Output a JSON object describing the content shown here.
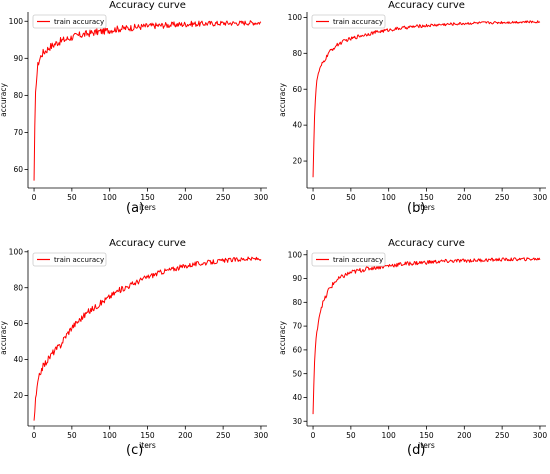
{
  "chart_data": [
    {
      "type": "line",
      "caption": "(a)",
      "title": "Accuracy curve",
      "xlabel": "iters",
      "ylabel": "accuracy",
      "xlim": [
        -8,
        308
      ],
      "ylim": [
        55,
        102.5
      ],
      "xticks": [
        0,
        50,
        100,
        150,
        200,
        250,
        300
      ],
      "yticks": [
        60,
        70,
        80,
        90,
        100
      ],
      "legend": "upper left",
      "grid": false,
      "series": [
        {
          "name": "train accuracy",
          "color": "#ff0000",
          "x": [
            0,
            1,
            2,
            3,
            4,
            5,
            6,
            8,
            10,
            12,
            15,
            18,
            20,
            25,
            30,
            35,
            40,
            45,
            50,
            60,
            70,
            80,
            90,
            100,
            110,
            120,
            130,
            140,
            150,
            160,
            170,
            180,
            190,
            200,
            210,
            220,
            230,
            240,
            250,
            260,
            270,
            280,
            290,
            297,
            300
          ],
          "y": [
            57,
            71,
            80,
            84,
            86,
            88,
            89,
            90,
            91,
            91.5,
            92,
            92.5,
            93,
            93.5,
            94.2,
            94.6,
            95,
            95.3,
            95.7,
            96.2,
            96.6,
            97,
            97.3,
            97.6,
            97.9,
            98.1,
            98.3,
            98.5,
            98.7,
            98.8,
            98.9,
            99,
            99.1,
            99.2,
            99.3,
            99.3,
            99.4,
            99.4,
            99.5,
            99.5,
            99.5,
            99.6,
            99.6,
            99.6,
            99.7
          ]
        }
      ]
    },
    {
      "type": "line",
      "caption": "(b)",
      "title": "Accuracy curve",
      "xlabel": "iters",
      "ylabel": "accuracy",
      "xlim": [
        -8,
        308
      ],
      "ylim": [
        5,
        103
      ],
      "xticks": [
        0,
        50,
        100,
        150,
        200,
        250,
        300
      ],
      "yticks": [
        20,
        40,
        60,
        80,
        100
      ],
      "legend": "upper left",
      "grid": false,
      "series": [
        {
          "name": "train accuracy",
          "color": "#ff0000",
          "x": [
            0,
            1,
            2,
            3,
            4,
            5,
            6,
            8,
            10,
            12,
            15,
            18,
            20,
            25,
            30,
            35,
            40,
            45,
            50,
            60,
            70,
            80,
            90,
            100,
            110,
            120,
            130,
            140,
            150,
            160,
            170,
            180,
            190,
            200,
            210,
            220,
            230,
            240,
            250,
            260,
            270,
            280,
            290,
            300
          ],
          "y": [
            11,
            30,
            45,
            54,
            60,
            64,
            67,
            70,
            72,
            74,
            76,
            78,
            80,
            82,
            84,
            85.5,
            86.5,
            87.5,
            88,
            89.5,
            90.5,
            91.5,
            92.3,
            93,
            93.6,
            94.2,
            94.7,
            95.1,
            95.4,
            95.7,
            96,
            96.2,
            96.4,
            96.6,
            96.8,
            96.9,
            97,
            97.1,
            97.2,
            97.3,
            97.4,
            97.5,
            97.5,
            97.6
          ]
        }
      ]
    },
    {
      "type": "line",
      "caption": "(c)",
      "title": "Accuracy curve",
      "xlabel": "iters",
      "ylabel": "accuracy",
      "xlim": [
        -8,
        308
      ],
      "ylim": [
        3,
        101
      ],
      "xticks": [
        0,
        50,
        100,
        150,
        200,
        250,
        300
      ],
      "yticks": [
        20,
        40,
        60,
        80,
        100
      ],
      "legend": "upper left",
      "grid": false,
      "series": [
        {
          "name": "train accuracy",
          "color": "#ff0000",
          "x": [
            0,
            2,
            4,
            6,
            8,
            10,
            15,
            20,
            25,
            30,
            35,
            40,
            45,
            50,
            60,
            70,
            80,
            90,
            100,
            110,
            120,
            130,
            140,
            150,
            160,
            170,
            180,
            190,
            200,
            210,
            220,
            230,
            240,
            250,
            260,
            270,
            280,
            290,
            300
          ],
          "y": [
            6,
            17,
            24,
            29,
            32,
            35,
            38,
            41,
            44,
            46,
            48,
            52,
            55,
            58,
            62,
            66,
            69,
            72,
            75,
            78,
            80,
            82,
            84,
            86,
            87.5,
            89,
            90,
            91,
            92,
            93,
            93.5,
            94,
            94.5,
            95,
            95.5,
            95.7,
            96,
            96,
            96.2
          ]
        }
      ]
    },
    {
      "type": "line",
      "caption": "(d)",
      "title": "Accuracy curve",
      "xlabel": "iters",
      "ylabel": "accuracy",
      "xlim": [
        -8,
        308
      ],
      "ylim": [
        28,
        102
      ],
      "xticks": [
        0,
        50,
        100,
        150,
        200,
        250,
        300
      ],
      "yticks": [
        30,
        40,
        50,
        60,
        70,
        80,
        90,
        100
      ],
      "legend": "upper left",
      "grid": false,
      "series": [
        {
          "name": "train accuracy",
          "color": "#ff0000",
          "x": [
            0,
            1,
            2,
            3,
            4,
            5,
            6,
            8,
            10,
            12,
            15,
            18,
            20,
            25,
            30,
            35,
            40,
            45,
            50,
            60,
            70,
            80,
            90,
            100,
            110,
            120,
            130,
            140,
            150,
            160,
            170,
            180,
            190,
            200,
            210,
            220,
            230,
            240,
            250,
            260,
            270,
            280,
            290,
            300
          ],
          "y": [
            33,
            45,
            55,
            60,
            64,
            67,
            70,
            74,
            77,
            79,
            81,
            83,
            85,
            87,
            89,
            90,
            91,
            91.8,
            92.5,
            93.3,
            94,
            94.6,
            95,
            95.4,
            95.8,
            96.1,
            96.4,
            96.6,
            96.8,
            97,
            97.2,
            97.3,
            97.4,
            97.5,
            97.6,
            97.7,
            97.8,
            97.9,
            98,
            98,
            98.1,
            98.1,
            98.2,
            98.2
          ]
        }
      ]
    }
  ]
}
